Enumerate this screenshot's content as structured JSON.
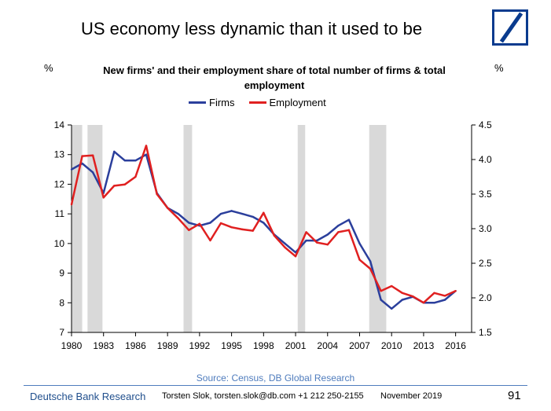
{
  "page": {
    "title": "US economy less dynamic than it used to be",
    "left_unit": "%",
    "right_unit": "%",
    "source": "Source: Census, DB Global Research",
    "footer": {
      "brand": "Deutsche Bank Research",
      "contact": "Torsten Slok, torsten.slok@db.com +1 212 250-2155",
      "date": "November 2019",
      "page_number": "91"
    }
  },
  "colors": {
    "firms": "#2b3f9c",
    "employment": "#e02020",
    "recession": "#d9d9d9",
    "brand": "#0a3b8e"
  },
  "chart_data": {
    "type": "line",
    "title": "New firms' and their employment share of total number of firms & total employment",
    "x": [
      1980,
      1981,
      1982,
      1983,
      1984,
      1985,
      1986,
      1987,
      1988,
      1989,
      1990,
      1991,
      1992,
      1993,
      1994,
      1995,
      1996,
      1997,
      1998,
      1999,
      2000,
      2001,
      2002,
      2003,
      2004,
      2005,
      2006,
      2007,
      2008,
      2009,
      2010,
      2011,
      2012,
      2013,
      2014,
      2015,
      2016
    ],
    "series": [
      {
        "name": "Firms",
        "axis": "left",
        "values": [
          12.5,
          12.7,
          12.4,
          11.7,
          13.1,
          12.8,
          12.8,
          13.0,
          11.7,
          11.2,
          11.0,
          10.7,
          10.6,
          10.7,
          11.0,
          11.1,
          11.0,
          10.9,
          10.7,
          10.3,
          10.0,
          9.7,
          10.1,
          10.1,
          10.3,
          10.6,
          10.8,
          10.0,
          9.4,
          8.1,
          7.8,
          8.1,
          8.2,
          8.0,
          8.0,
          8.1,
          8.4
        ]
      },
      {
        "name": "Employment",
        "axis": "right",
        "values": [
          3.35,
          4.05,
          4.06,
          3.45,
          3.62,
          3.64,
          3.75,
          4.2,
          3.5,
          3.3,
          3.15,
          2.98,
          3.07,
          2.83,
          3.08,
          3.02,
          2.99,
          2.97,
          3.23,
          2.9,
          2.73,
          2.6,
          2.95,
          2.8,
          2.77,
          2.95,
          2.98,
          2.55,
          2.42,
          2.1,
          2.17,
          2.07,
          2.02,
          1.93,
          2.07,
          2.03,
          2.1
        ]
      }
    ],
    "recessions": [
      [
        1980,
        1981
      ],
      [
        1981.5,
        1982.9
      ],
      [
        1990.5,
        1991.3
      ],
      [
        2001.2,
        2001.9
      ],
      [
        2007.9,
        2009.5
      ]
    ],
    "y_left": {
      "min": 7,
      "max": 14,
      "ticks": [
        7,
        8,
        9,
        10,
        11,
        12,
        13,
        14
      ]
    },
    "y_right": {
      "min": 1.5,
      "max": 4.5,
      "ticks": [
        "1.5",
        "2.0",
        "2.5",
        "3.0",
        "3.5",
        "4.0",
        "4.5"
      ]
    },
    "x_ticks": [
      1980,
      1983,
      1986,
      1989,
      1992,
      1995,
      1998,
      2001,
      2004,
      2007,
      2010,
      2013,
      2016
    ],
    "x_range": [
      1980,
      2017.5
    ],
    "legend": "top-center",
    "grid": false
  }
}
